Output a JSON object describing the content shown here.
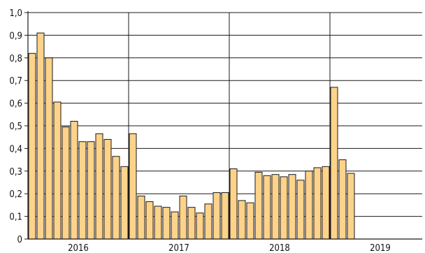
{
  "chart_data": {
    "type": "bar",
    "y_ticks": [
      "0",
      "0,1",
      "0,2",
      "0,3",
      "0,4",
      "0,5",
      "0,6",
      "0,7",
      "0,8",
      "0,9",
      "1,0"
    ],
    "year_labels": [
      "2016",
      "2017",
      "2018",
      "2019"
    ],
    "ylim": [
      0,
      1.0
    ],
    "grid": true,
    "bar_color": "#FDD38A",
    "bar_stroke": "#1a1a1a",
    "slots_per_year": 12,
    "values": [
      0.82,
      0.91,
      0.8,
      0.605,
      0.495,
      0.52,
      0.43,
      0.43,
      0.465,
      0.44,
      0.365,
      0.32,
      0.465,
      0.19,
      0.165,
      0.145,
      0.14,
      0.12,
      0.19,
      0.14,
      0.115,
      0.155,
      0.205,
      0.205,
      0.31,
      0.17,
      0.16,
      0.295,
      0.28,
      0.285,
      0.275,
      0.285,
      0.26,
      0.3,
      0.315,
      0.32,
      0.67,
      0.35,
      0.29
    ]
  }
}
